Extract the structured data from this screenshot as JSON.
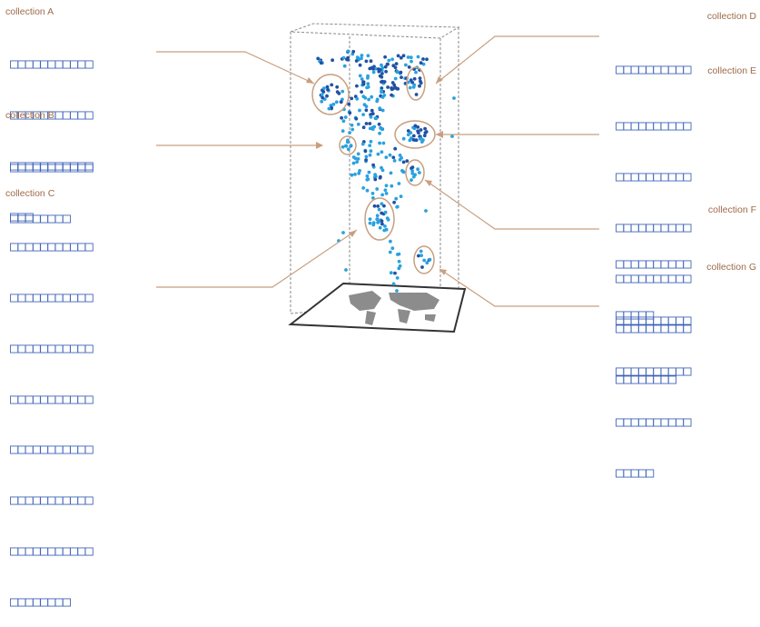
{
  "collections": [
    {
      "id": "A",
      "label": "collection A",
      "text_lines": [
        "□□□□□□□□□□□",
        "□□□□□□□□□□□",
        "□□□□□□□□□□□",
        "□□□"
      ]
    },
    {
      "id": "B",
      "label": "collection B",
      "text_lines": [
        "□□□□□□□□□□□",
        "□□□□□□□□"
      ]
    },
    {
      "id": "C",
      "label": "collection C",
      "text_lines": [
        "□□□□□□□□□□□",
        "□□□□□□□□□□□",
        "□□□□□□□□□□□",
        "□□□□□□□□□□□",
        "□□□□□□□□□□□",
        "□□□□□□□□□□□",
        "□□□□□□□□□□□",
        "□□□□□□□□"
      ]
    },
    {
      "id": "D",
      "label": "collection D",
      "text_lines": [
        "□□□□□□□□□□"
      ]
    },
    {
      "id": "E",
      "label": "collection E",
      "text_lines": [
        "□□□□□□□□□□",
        "□□□□□□□□□□",
        "□□□□□□□□□□",
        "□□□□□□□□□□",
        "□□□□□□□□□□",
        "□□□□□□□□"
      ]
    },
    {
      "id": "F",
      "label": "collection F",
      "text_lines": [
        "□□□□□□□□□□",
        "□□□□□"
      ]
    },
    {
      "id": "G",
      "label": "collection G",
      "text_lines": [
        "□□□□□□□□□□",
        "□□□□□□□□□□",
        "□□□□□□□□□□",
        "□□□□□"
      ]
    }
  ],
  "colors": {
    "label": "#9c6b49",
    "text": "#3f63b8",
    "leader": "#c89f80",
    "cluster_outline": "#c89f80",
    "box_edge": "#8a8a8a",
    "point_light": "#2aa1df",
    "point_dark": "#2151a3",
    "map_land": "#8c8c8c",
    "map_frame": "#333333"
  },
  "icons": {
    "base": "world-map-icon"
  }
}
